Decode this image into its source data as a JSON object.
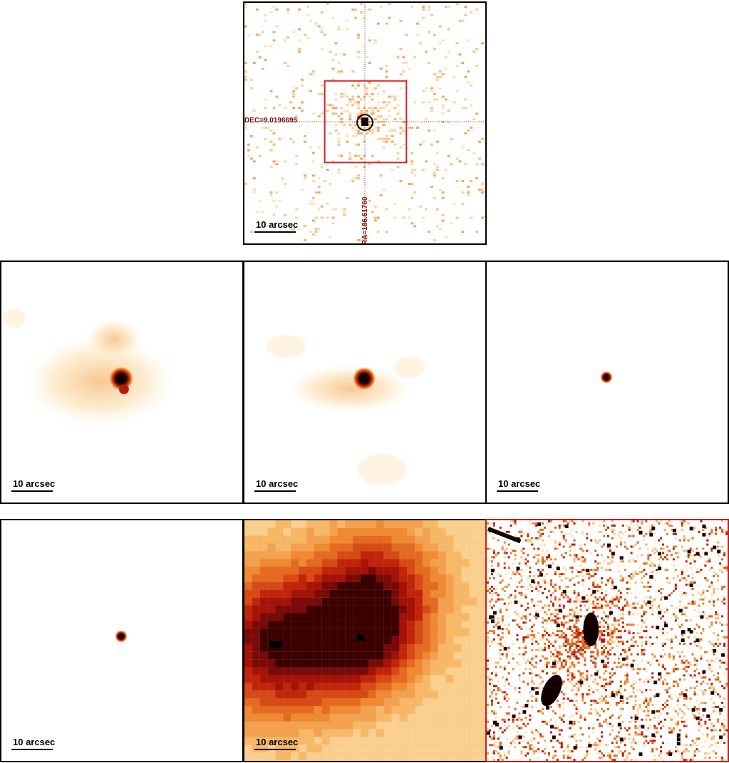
{
  "colors": {
    "frame": "#000000",
    "crosshair": "#8b1a1a",
    "region_box": "#d42020",
    "heat_dark": "#000000",
    "heat_red": "#b11a0a",
    "heat_orange": "#e8842a",
    "heat_light": "#fbe0b0"
  },
  "top_panel": {
    "dec_label": "DEC=9.0196695",
    "ra_label": "RA=186.61760",
    "scale_label": "10 arcsec"
  },
  "row2": [
    {
      "scale_label": "10 arcsec"
    },
    {
      "scale_label": "10 arcsec"
    },
    {
      "scale_label": "10 arcsec"
    }
  ],
  "row3": [
    {
      "scale_label": "10 arcsec"
    },
    {
      "scale_label": "10 arcsec"
    },
    {
      "scale_label": ""
    }
  ]
}
